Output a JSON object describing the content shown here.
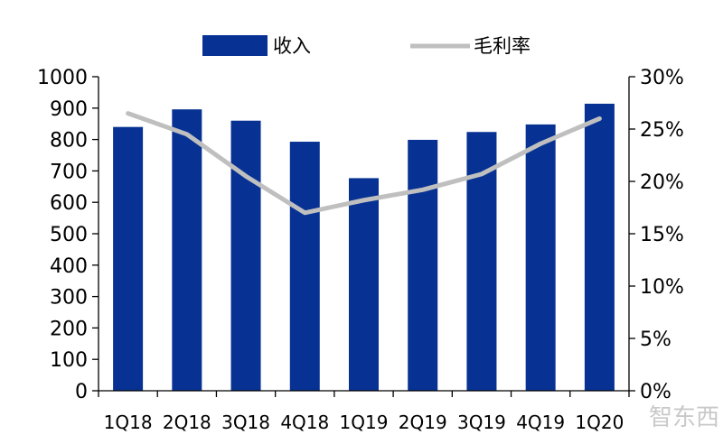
{
  "colors": {
    "bar": "#073293",
    "line": "#bfbfbf",
    "axis": "#000000",
    "watermark": "#c9c9c9"
  },
  "watermark_text": "智东西",
  "chart_data": {
    "type": "bar",
    "categories": [
      "1Q18",
      "2Q18",
      "3Q18",
      "4Q18",
      "1Q19",
      "2Q19",
      "3Q19",
      "4Q19",
      "1Q20"
    ],
    "series": [
      {
        "name": "收入",
        "type": "bar",
        "axis": "left",
        "values": [
          840,
          896,
          860,
          793,
          677,
          799,
          824,
          848,
          914
        ]
      },
      {
        "name": "毛利率",
        "type": "line",
        "axis": "right",
        "unit": "%",
        "values": [
          26.5,
          24.5,
          20.5,
          17.0,
          18.2,
          19.2,
          20.7,
          23.6,
          26.0
        ]
      }
    ],
    "ylim_left": [
      0,
      1000
    ],
    "yticks_left": [
      "0",
      "100",
      "200",
      "300",
      "400",
      "500",
      "600",
      "700",
      "800",
      "900",
      "1000"
    ],
    "ylim_right": [
      0,
      30
    ],
    "yticks_right": [
      "0%",
      "5%",
      "10%",
      "15%",
      "20%",
      "25%",
      "30%"
    ],
    "legend_position": "top-center",
    "grid": false
  }
}
